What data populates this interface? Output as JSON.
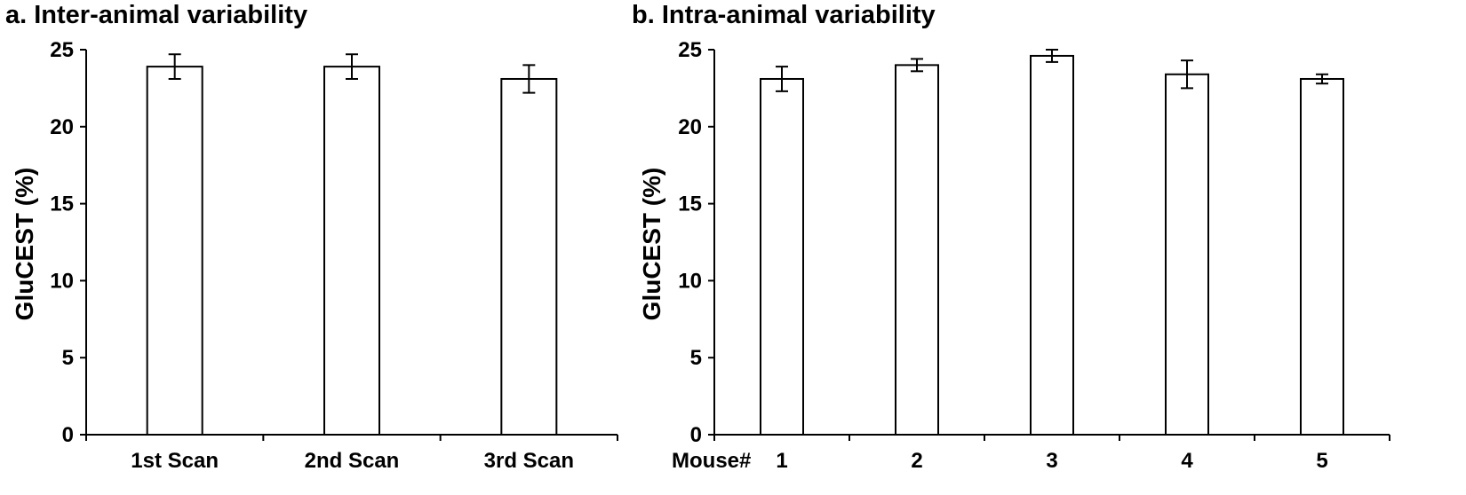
{
  "chart_data": [
    {
      "type": "bar",
      "title": "a. Inter-animal variability",
      "xlabel": "",
      "ylabel": "GluCEST  (%)",
      "x_prefix": "",
      "categories": [
        "1st Scan",
        "2nd Scan",
        "3rd Scan"
      ],
      "values": [
        23.9,
        23.9,
        23.1
      ],
      "errors": [
        0.8,
        0.8,
        0.9
      ],
      "ylim": [
        0,
        25
      ],
      "yticks": [
        0,
        5,
        10,
        15,
        20,
        25
      ],
      "grid": false,
      "legend": "none"
    },
    {
      "type": "bar",
      "title": "b. Intra-animal variability",
      "xlabel": "",
      "ylabel": "GluCEST  (%)",
      "x_prefix": "Mouse#",
      "categories": [
        "1",
        "2",
        "3",
        "4",
        "5"
      ],
      "values": [
        23.1,
        24.0,
        24.6,
        23.4,
        23.1
      ],
      "errors": [
        0.8,
        0.4,
        0.4,
        0.9,
        0.3
      ],
      "ylim": [
        0,
        25
      ],
      "yticks": [
        0,
        5,
        10,
        15,
        20,
        25
      ],
      "grid": false,
      "legend": "none"
    }
  ]
}
